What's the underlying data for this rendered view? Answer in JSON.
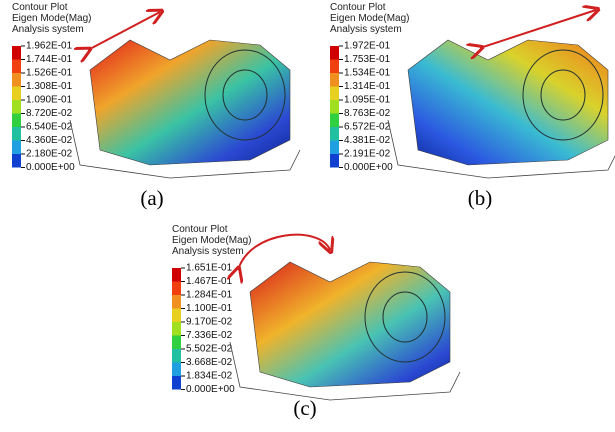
{
  "panels": [
    {
      "header": [
        "Contour Plot",
        "Eigen Mode(Mag)",
        "Analysis system"
      ],
      "legend": [
        "1.962E-01",
        "1.744E-01",
        "1.526E-01",
        "1.308E-01",
        "1.090E-01",
        "8.720E-02",
        "6.540E-02",
        "4.360E-02",
        "2.180E-02",
        "0.000E+00"
      ],
      "caption": "(a)"
    },
    {
      "header": [
        "Contour Plot",
        "Eigen Mode(Mag)",
        "Analysis system"
      ],
      "legend": [
        "1.972E-01",
        "1.753E-01",
        "1.534E-01",
        "1.314E-01",
        "1.095E-01",
        "8.763E-02",
        "6.572E-02",
        "4.381E-02",
        "2.191E-02",
        "0.000E+00"
      ],
      "caption": "(b)"
    },
    {
      "header": [
        "Contour Plot",
        "Eigen Mode(Mag)",
        "Analysis system"
      ],
      "legend": [
        "1.651E-01",
        "1.467E-01",
        "1.284E-01",
        "1.100E-01",
        "9.170E-02",
        "7.336E-02",
        "5.502E-02",
        "3.668E-02",
        "1.834E-02",
        "0.000E+00"
      ],
      "caption": "(c)"
    }
  ]
}
